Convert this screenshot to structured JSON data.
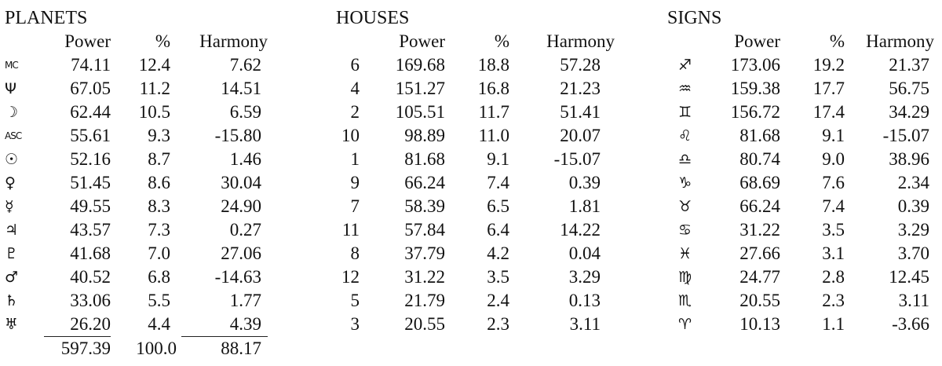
{
  "planets": {
    "title": "PLANETS",
    "headers": [
      "Power",
      "%",
      "Harmony"
    ],
    "rows": [
      {
        "symbol": "MC",
        "small": true,
        "power": "74.11",
        "pct": "12.4",
        "harmony": "7.62"
      },
      {
        "symbol": "Ψ",
        "small": false,
        "power": "67.05",
        "pct": "11.2",
        "harmony": "14.51"
      },
      {
        "symbol": "☽",
        "small": false,
        "power": "62.44",
        "pct": "10.5",
        "harmony": "6.59"
      },
      {
        "symbol": "ASC",
        "small": true,
        "power": "55.61",
        "pct": "9.3",
        "harmony": "-15.80"
      },
      {
        "symbol": "☉",
        "small": false,
        "power": "52.16",
        "pct": "8.7",
        "harmony": "1.46"
      },
      {
        "symbol": "♀",
        "small": false,
        "power": "51.45",
        "pct": "8.6",
        "harmony": "30.04"
      },
      {
        "symbol": "☿",
        "small": false,
        "power": "49.55",
        "pct": "8.3",
        "harmony": "24.90"
      },
      {
        "symbol": "♃",
        "small": false,
        "power": "43.57",
        "pct": "7.3",
        "harmony": "0.27"
      },
      {
        "symbol": "♇",
        "small": false,
        "power": "41.68",
        "pct": "7.0",
        "harmony": "27.06"
      },
      {
        "symbol": "♂",
        "small": false,
        "power": "40.52",
        "pct": "6.8",
        "harmony": "-14.63"
      },
      {
        "symbol": "♄",
        "small": false,
        "power": "33.06",
        "pct": "5.5",
        "harmony": "1.77"
      },
      {
        "symbol": "♅",
        "small": false,
        "power": "26.20",
        "pct": "4.4",
        "harmony": "4.39"
      }
    ],
    "totals": {
      "power": "597.39",
      "pct": "100.0",
      "harmony": "88.17"
    }
  },
  "houses": {
    "title": "HOUSES",
    "headers": [
      "Power",
      "%",
      "Harmony"
    ],
    "rows": [
      {
        "house": "6",
        "power": "169.68",
        "pct": "18.8",
        "harmony": "57.28"
      },
      {
        "house": "4",
        "power": "151.27",
        "pct": "16.8",
        "harmony": "21.23"
      },
      {
        "house": "2",
        "power": "105.51",
        "pct": "11.7",
        "harmony": "51.41"
      },
      {
        "house": "10",
        "power": "98.89",
        "pct": "11.0",
        "harmony": "20.07"
      },
      {
        "house": "1",
        "power": "81.68",
        "pct": "9.1",
        "harmony": "-15.07"
      },
      {
        "house": "9",
        "power": "66.24",
        "pct": "7.4",
        "harmony": "0.39"
      },
      {
        "house": "7",
        "power": "58.39",
        "pct": "6.5",
        "harmony": "1.81"
      },
      {
        "house": "11",
        "power": "57.84",
        "pct": "6.4",
        "harmony": "14.22"
      },
      {
        "house": "8",
        "power": "37.79",
        "pct": "4.2",
        "harmony": "0.04"
      },
      {
        "house": "12",
        "power": "31.22",
        "pct": "3.5",
        "harmony": "3.29"
      },
      {
        "house": "5",
        "power": "21.79",
        "pct": "2.4",
        "harmony": "0.13"
      },
      {
        "house": "3",
        "power": "20.55",
        "pct": "2.3",
        "harmony": "3.11"
      }
    ]
  },
  "signs": {
    "title": "SIGNS",
    "headers": [
      "Power",
      "%",
      "Harmony"
    ],
    "rows": [
      {
        "symbol": "♐",
        "power": "173.06",
        "pct": "19.2",
        "harmony": "21.37"
      },
      {
        "symbol": "♒",
        "power": "159.38",
        "pct": "17.7",
        "harmony": "56.75"
      },
      {
        "symbol": "♊",
        "power": "156.72",
        "pct": "17.4",
        "harmony": "34.29"
      },
      {
        "symbol": "♌",
        "power": "81.68",
        "pct": "9.1",
        "harmony": "-15.07"
      },
      {
        "symbol": "♎",
        "power": "80.74",
        "pct": "9.0",
        "harmony": "38.96"
      },
      {
        "symbol": "♑",
        "power": "68.69",
        "pct": "7.6",
        "harmony": "2.34"
      },
      {
        "symbol": "♉",
        "power": "66.24",
        "pct": "7.4",
        "harmony": "0.39"
      },
      {
        "symbol": "♋",
        "power": "31.22",
        "pct": "3.5",
        "harmony": "3.29"
      },
      {
        "symbol": "♓",
        "power": "27.66",
        "pct": "3.1",
        "harmony": "3.70"
      },
      {
        "symbol": "♍",
        "power": "24.77",
        "pct": "2.8",
        "harmony": "12.45"
      },
      {
        "symbol": "♏",
        "power": "20.55",
        "pct": "2.3",
        "harmony": "3.11"
      },
      {
        "symbol": "♈",
        "power": "10.13",
        "pct": "1.1",
        "harmony": "-3.66"
      }
    ]
  }
}
